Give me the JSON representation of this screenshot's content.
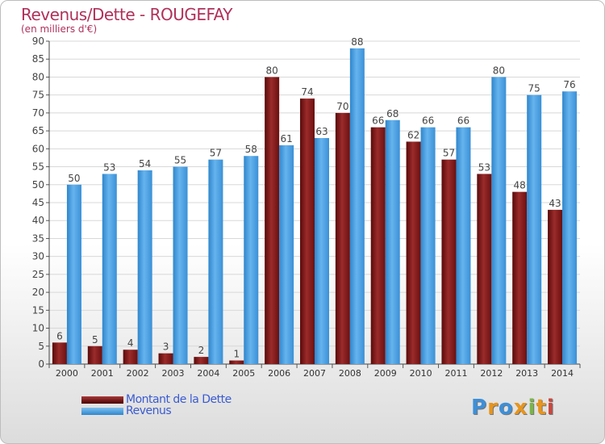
{
  "chart_data": {
    "type": "bar",
    "title": "Revenus/Dette - ROUGEFAY",
    "subtitle": "(en milliers d'€)",
    "categories": [
      "2000",
      "2001",
      "2002",
      "2003",
      "2004",
      "2005",
      "2006",
      "2007",
      "2008",
      "2009",
      "2010",
      "2011",
      "2012",
      "2013",
      "2014"
    ],
    "series": [
      {
        "name": "Montant de la Dette",
        "color": "#8b1a1a",
        "values": [
          6,
          5,
          4,
          3,
          2,
          1,
          80,
          74,
          70,
          66,
          62,
          57,
          53,
          48,
          43
        ]
      },
      {
        "name": "Revenus",
        "color": "#4ba3e3",
        "values": [
          50,
          53,
          54,
          55,
          57,
          58,
          61,
          63,
          88,
          68,
          66,
          66,
          80,
          75,
          76
        ]
      }
    ],
    "ylim": [
      0,
      90
    ],
    "yticks": [
      0,
      5,
      10,
      15,
      20,
      25,
      30,
      35,
      40,
      45,
      50,
      55,
      60,
      65,
      70,
      75,
      80,
      85,
      90
    ],
    "grid": true,
    "legend_position": "bottom-left"
  },
  "legend": {
    "debt_label": "Montant de la Dette",
    "revenue_label": "Revenus"
  },
  "logo": {
    "text": "Proxiti",
    "letters": [
      "P",
      "r",
      "o",
      "x",
      "i",
      "t",
      "i"
    ]
  }
}
